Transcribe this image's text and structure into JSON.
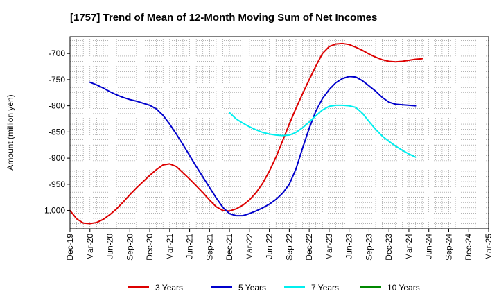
{
  "chart_data": {
    "type": "line",
    "title": "[1757]  Trend of Mean of 12-Month Moving Sum of Net Incomes",
    "ylabel": "Amount (million yen)",
    "xlabel": "",
    "ylim": [
      -1035,
      -668
    ],
    "yticks": [
      -700,
      -750,
      -800,
      -850,
      -900,
      -950,
      -1000
    ],
    "ytick_labels": [
      "-700",
      "-750",
      "-800",
      "-850",
      "-900",
      "-950",
      "-1,000"
    ],
    "x_ticks": [
      "Dec-19",
      "Mar-20",
      "Jun-20",
      "Sep-20",
      "Dec-20",
      "Mar-21",
      "Jun-21",
      "Sep-21",
      "Dec-21",
      "Mar-22",
      "Jun-22",
      "Sep-22",
      "Dec-22",
      "Mar-23",
      "Jun-23",
      "Sep-23",
      "Dec-23",
      "Mar-24",
      "Jun-24",
      "Sep-24",
      "Dec-24",
      "Mar-25"
    ],
    "grid": true,
    "legend_position": "bottom",
    "series": [
      {
        "name": "3 Years",
        "color": "#dd0000",
        "start_index": 0,
        "values": [
          -1000,
          -1016,
          -1024,
          -1025,
          -1023,
          -1017,
          -1008,
          -997,
          -984,
          -970,
          -957,
          -945,
          -933,
          -922,
          -913,
          -911,
          -916,
          -928,
          -940,
          -953,
          -966,
          -980,
          -993,
          -1000,
          -1001,
          -997,
          -990,
          -980,
          -966,
          -948,
          -925,
          -898,
          -867,
          -835,
          -805,
          -777,
          -750,
          -724,
          -700,
          -687,
          -682,
          -681,
          -683,
          -688,
          -694,
          -701,
          -707,
          -712,
          -715,
          -716,
          -715,
          -713,
          -711,
          -710
        ]
      },
      {
        "name": "5 Years",
        "color": "#0000cc",
        "start_index": 3,
        "values": [
          -755,
          -760,
          -766,
          -773,
          -779,
          -784,
          -788,
          -791,
          -795,
          -799,
          -806,
          -818,
          -835,
          -854,
          -874,
          -895,
          -916,
          -936,
          -956,
          -976,
          -994,
          -1006,
          -1010,
          -1010,
          -1006,
          -1001,
          -995,
          -988,
          -979,
          -967,
          -950,
          -921,
          -881,
          -843,
          -810,
          -786,
          -769,
          -756,
          -748,
          -744,
          -745,
          -752,
          -762,
          -772,
          -784,
          -793,
          -797,
          -798,
          -799,
          -800
        ]
      },
      {
        "name": "7 Years",
        "color": "#00eeee",
        "start_index": 24,
        "values": [
          -813,
          -825,
          -833,
          -840,
          -846,
          -851,
          -854,
          -856,
          -857,
          -856,
          -851,
          -842,
          -831,
          -819,
          -808,
          -801,
          -799,
          -799,
          -800,
          -803,
          -814,
          -830,
          -845,
          -858,
          -868,
          -877,
          -885,
          -892,
          -898
        ]
      },
      {
        "name": "10 Years",
        "color": "#008800",
        "start_index": 0,
        "values": []
      }
    ]
  }
}
